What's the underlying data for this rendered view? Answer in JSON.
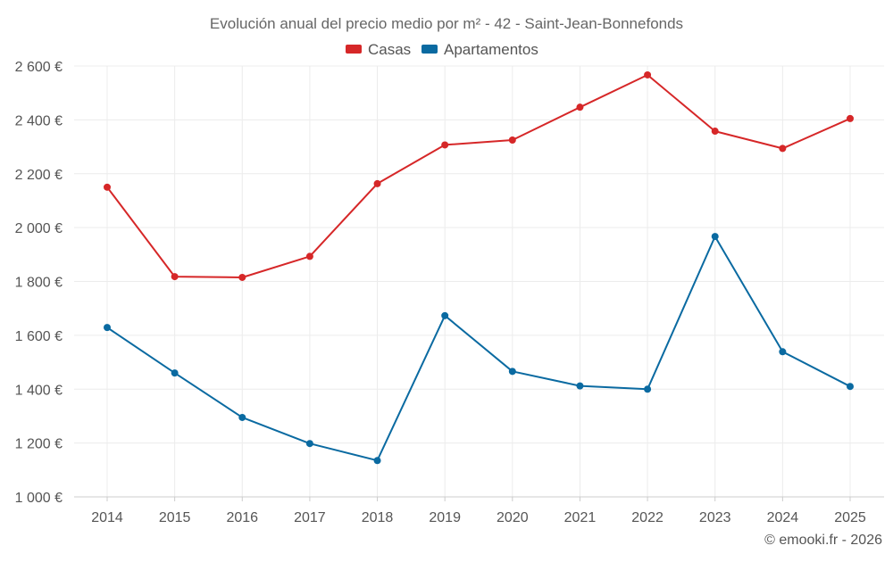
{
  "chart_data": {
    "type": "line",
    "title": "Evolución anual del precio medio por m² - 42 - Saint-Jean-Bonnefonds",
    "xlabel": "",
    "ylabel": "",
    "categories": [
      "2014",
      "2015",
      "2016",
      "2017",
      "2018",
      "2019",
      "2020",
      "2021",
      "2022",
      "2023",
      "2024",
      "2025"
    ],
    "ylim": [
      1000,
      2600
    ],
    "yticks": [
      1000,
      1200,
      1400,
      1600,
      1800,
      2000,
      2200,
      2400,
      2600
    ],
    "ytick_labels": [
      "1 000 €",
      "1 200 €",
      "1 400 €",
      "1 600 €",
      "1 800 €",
      "2 000 €",
      "2 200 €",
      "2 400 €",
      "2 600 €"
    ],
    "grid": true,
    "legend_position": "top-center",
    "series": [
      {
        "name": "Casas",
        "color": "#d62728",
        "values": [
          2150,
          1818,
          1815,
          1893,
          2163,
          2307,
          2325,
          2447,
          2567,
          2358,
          2294,
          2405
        ]
      },
      {
        "name": "Apartamentos",
        "color": "#0a6aa1",
        "values": [
          1629,
          1460,
          1295,
          1198,
          1135,
          1673,
          1466,
          1412,
          1400,
          1967,
          1539,
          1410
        ]
      }
    ],
    "credit": "© emooki.fr - 2026"
  }
}
